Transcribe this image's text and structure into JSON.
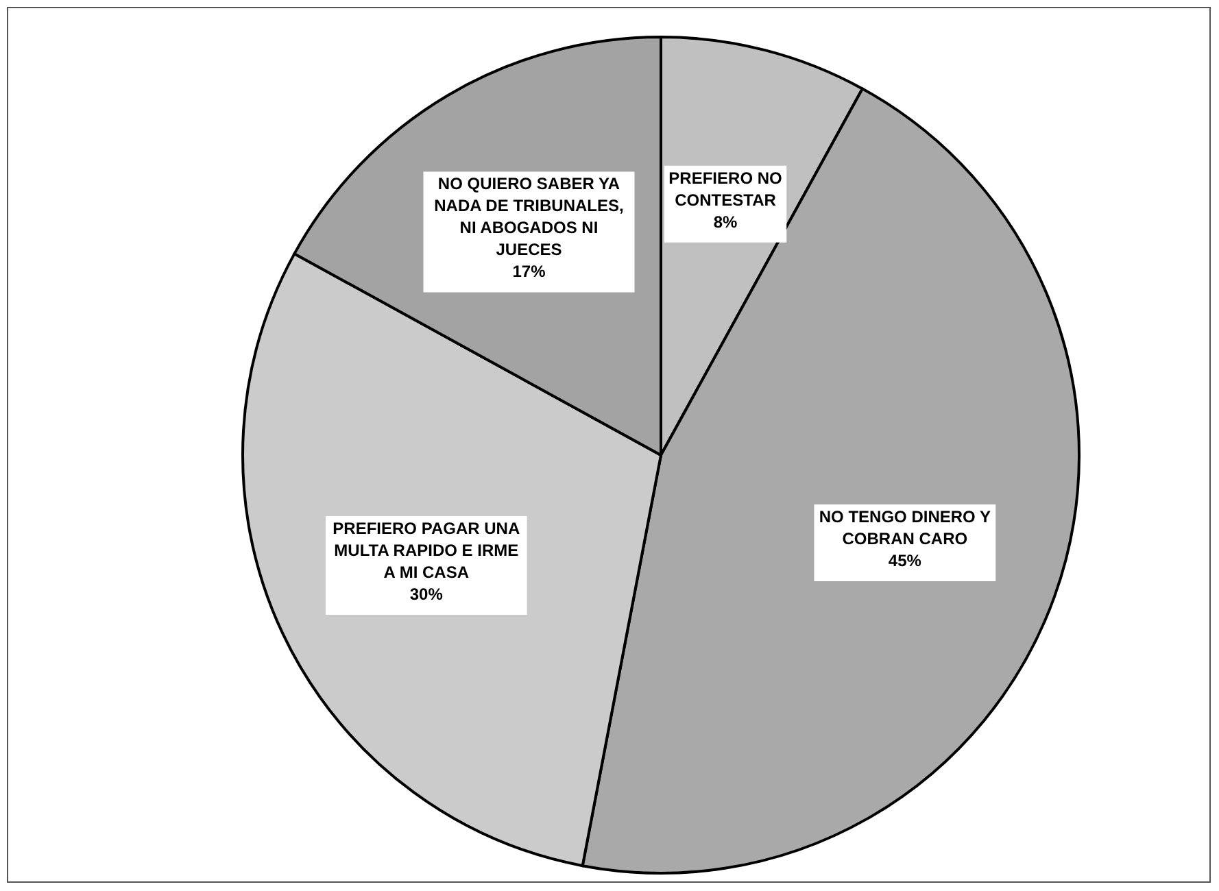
{
  "chart_data": {
    "type": "pie",
    "categories": [
      "PREFIERO NO\nCONTESTAR",
      "NO TENGO DINERO Y\nCOBRAN CARO",
      "PREFIERO PAGAR UNA\nMULTA RAPIDO E IRME\nA MI CASA",
      "NO QUIERO SABER YA\nNADA  DE TRIBUNALES,\nNI ABOGADOS NI\nJUECES"
    ],
    "values": [
      8,
      45,
      30,
      17
    ],
    "colors": [
      "#c0c0c0",
      "#a9a9a9",
      "#cbcbcb",
      "#a3a3a3"
    ],
    "value_labels": [
      "8%",
      "45%",
      "30%",
      "17%"
    ]
  }
}
